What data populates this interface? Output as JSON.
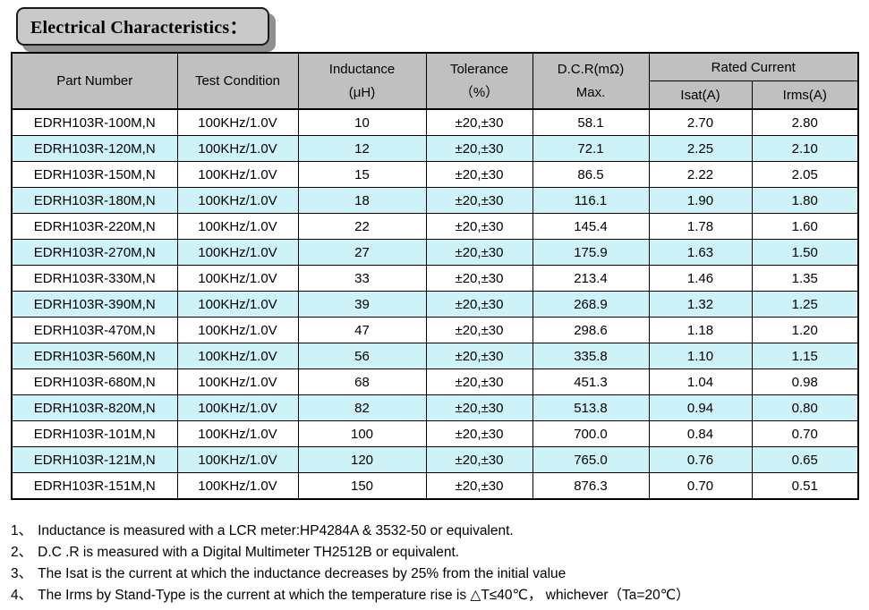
{
  "title": "Electrical Characteristics：",
  "table": {
    "headers": {
      "part_number": "Part Number",
      "test_condition": "Test Condition",
      "inductance_line1": "Inductance",
      "inductance_line2": "(μH)",
      "tolerance_line1": "Tolerance",
      "tolerance_line2": "（%）",
      "dcr_line1": "D.C.R(mΩ)",
      "dcr_line2": "Max.",
      "rated_current": "Rated Current",
      "isat": "Isat(A)",
      "irms": "Irms(A)"
    },
    "rows": [
      {
        "part_number": "EDRH103R-100M,N",
        "test_condition": "100KHz/1.0V",
        "inductance": "10",
        "tolerance": "±20,±30",
        "dcr_max": "58.1",
        "isat": "2.70",
        "irms": "2.80"
      },
      {
        "part_number": "EDRH103R-120M,N",
        "test_condition": "100KHz/1.0V",
        "inductance": "12",
        "tolerance": "±20,±30",
        "dcr_max": "72.1",
        "isat": "2.25",
        "irms": "2.10"
      },
      {
        "part_number": "EDRH103R-150M,N",
        "test_condition": "100KHz/1.0V",
        "inductance": "15",
        "tolerance": "±20,±30",
        "dcr_max": "86.5",
        "isat": "2.22",
        "irms": "2.05"
      },
      {
        "part_number": "EDRH103R-180M,N",
        "test_condition": "100KHz/1.0V",
        "inductance": "18",
        "tolerance": "±20,±30",
        "dcr_max": "116.1",
        "isat": "1.90",
        "irms": "1.80"
      },
      {
        "part_number": "EDRH103R-220M,N",
        "test_condition": "100KHz/1.0V",
        "inductance": "22",
        "tolerance": "±20,±30",
        "dcr_max": "145.4",
        "isat": "1.78",
        "irms": "1.60"
      },
      {
        "part_number": "EDRH103R-270M,N",
        "test_condition": "100KHz/1.0V",
        "inductance": "27",
        "tolerance": "±20,±30",
        "dcr_max": "175.9",
        "isat": "1.63",
        "irms": "1.50"
      },
      {
        "part_number": "EDRH103R-330M,N",
        "test_condition": "100KHz/1.0V",
        "inductance": "33",
        "tolerance": "±20,±30",
        "dcr_max": "213.4",
        "isat": "1.46",
        "irms": "1.35"
      },
      {
        "part_number": "EDRH103R-390M,N",
        "test_condition": "100KHz/1.0V",
        "inductance": "39",
        "tolerance": "±20,±30",
        "dcr_max": "268.9",
        "isat": "1.32",
        "irms": "1.25"
      },
      {
        "part_number": "EDRH103R-470M,N",
        "test_condition": "100KHz/1.0V",
        "inductance": "47",
        "tolerance": "±20,±30",
        "dcr_max": "298.6",
        "isat": "1.18",
        "irms": "1.20"
      },
      {
        "part_number": "EDRH103R-560M,N",
        "test_condition": "100KHz/1.0V",
        "inductance": "56",
        "tolerance": "±20,±30",
        "dcr_max": "335.8",
        "isat": "1.10",
        "irms": "1.15"
      },
      {
        "part_number": "EDRH103R-680M,N",
        "test_condition": "100KHz/1.0V",
        "inductance": "68",
        "tolerance": "±20,±30",
        "dcr_max": "451.3",
        "isat": "1.04",
        "irms": "0.98"
      },
      {
        "part_number": "EDRH103R-820M,N",
        "test_condition": "100KHz/1.0V",
        "inductance": "82",
        "tolerance": "±20,±30",
        "dcr_max": "513.8",
        "isat": "0.94",
        "irms": "0.80"
      },
      {
        "part_number": "EDRH103R-101M,N",
        "test_condition": "100KHz/1.0V",
        "inductance": "100",
        "tolerance": "±20,±30",
        "dcr_max": "700.0",
        "isat": "0.84",
        "irms": "0.70"
      },
      {
        "part_number": "EDRH103R-121M,N",
        "test_condition": "100KHz/1.0V",
        "inductance": "120",
        "tolerance": "±20,±30",
        "dcr_max": "765.0",
        "isat": "0.76",
        "irms": "0.65"
      },
      {
        "part_number": "EDRH103R-151M,N",
        "test_condition": "100KHz/1.0V",
        "inductance": "150",
        "tolerance": "±20,±30",
        "dcr_max": "876.3",
        "isat": "0.70",
        "irms": "0.51"
      }
    ]
  },
  "notes": [
    {
      "num": "1、",
      "text": "Inductance is measured with a LCR meter:HP4284A & 3532-50 or equivalent."
    },
    {
      "num": "2、",
      "text": "D.C .R is measured with a Digital Multimeter TH2512B or equivalent."
    },
    {
      "num": "3、",
      "text": "The Isat is the current at which the inductance decreases by 25% from the initial value"
    },
    {
      "num": "4、",
      "text": "The Irms by Stand-Type is the current at which the temperature rise is △T≤40℃， whichever（Ta=20℃）"
    }
  ],
  "theme": {
    "header_fill": "#C0C0C0",
    "alt_row_fill": "#CDF3F8",
    "row_fill": "#FFFFFF",
    "border_color": "#000000",
    "title_fill": "#C9C9C9",
    "title_shadow": "#909090",
    "text_color": "#000000"
  }
}
